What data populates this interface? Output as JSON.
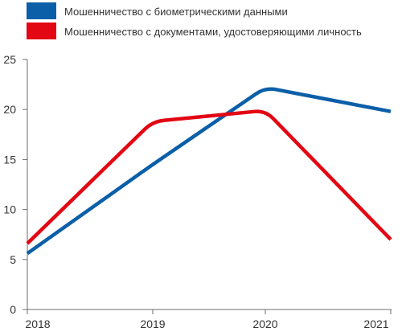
{
  "chart_data": {
    "type": "line",
    "title": "",
    "xlabel": "",
    "ylabel": "",
    "x": [
      "2018",
      "2019",
      "2020",
      "2021"
    ],
    "ylim": [
      0,
      25
    ],
    "yticks": [
      "0",
      "5",
      "10",
      "15",
      "20",
      "25"
    ],
    "grid": false,
    "legend_position": "top-left",
    "series": [
      {
        "name": "Мошенничество с биометрическими данными",
        "color": "#0b5fa8",
        "values": [
          5.6,
          14.5,
          22.2,
          19.8
        ]
      },
      {
        "name": "Мошенничество с документами, удостоверяющими личность",
        "color": "#e30613",
        "values": [
          6.6,
          18.8,
          19.9,
          7.0
        ]
      }
    ]
  }
}
